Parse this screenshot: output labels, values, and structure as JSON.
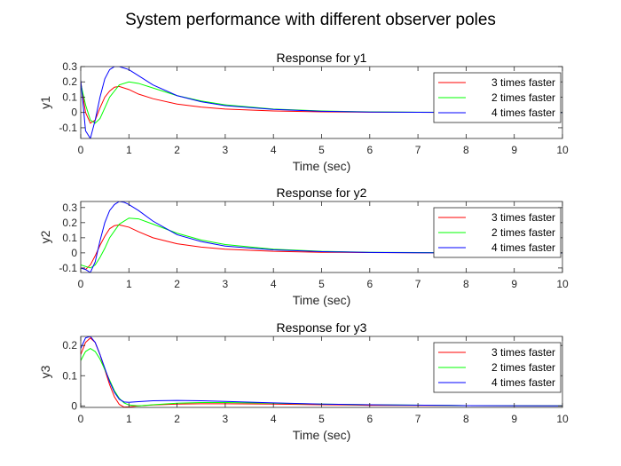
{
  "figure_title": "System performance with different observer poles",
  "chart_data": [
    {
      "type": "line",
      "title": "Response for y1",
      "xlabel": "Time (sec)",
      "ylabel": "y1",
      "xlim": [
        0,
        10
      ],
      "ylim": [
        -0.17,
        0.3
      ],
      "xticks": [
        0,
        1,
        2,
        3,
        4,
        5,
        6,
        7,
        8,
        9,
        10
      ],
      "yticks": [
        -0.1,
        0,
        0.1,
        0.2,
        0.3
      ],
      "ytick_labels": [
        "-0.1",
        "0",
        "0.1",
        "0.2",
        "0.3"
      ],
      "legend_position": "top-right",
      "series": [
        {
          "name": "3 times faster",
          "color": "#ff0000",
          "x": [
            0,
            0.1,
            0.2,
            0.3,
            0.4,
            0.5,
            0.6,
            0.7,
            0.8,
            1.0,
            1.2,
            1.5,
            2,
            2.5,
            3,
            4,
            5,
            6,
            7,
            8,
            10
          ],
          "y": [
            0.2,
            0.0,
            -0.07,
            -0.05,
            0.03,
            0.1,
            0.14,
            0.165,
            0.17,
            0.15,
            0.12,
            0.09,
            0.055,
            0.035,
            0.022,
            0.01,
            0.004,
            0.002,
            0.001,
            0,
            0
          ]
        },
        {
          "name": "2 times faster",
          "color": "#00ff00",
          "x": [
            0,
            0.1,
            0.2,
            0.3,
            0.4,
            0.5,
            0.6,
            0.8,
            1.0,
            1.2,
            1.5,
            2,
            2.5,
            3,
            4,
            5,
            6,
            7,
            8,
            10
          ],
          "y": [
            0.19,
            0.05,
            -0.05,
            -0.07,
            -0.04,
            0.03,
            0.1,
            0.18,
            0.2,
            0.19,
            0.16,
            0.11,
            0.075,
            0.05,
            0.022,
            0.01,
            0.004,
            0.002,
            0.001,
            0
          ]
        },
        {
          "name": "4 times faster",
          "color": "#0000ff",
          "x": [
            0,
            0.05,
            0.1,
            0.2,
            0.3,
            0.4,
            0.5,
            0.6,
            0.7,
            0.8,
            1.0,
            1.2,
            1.5,
            2,
            2.5,
            3,
            4,
            5,
            6,
            7,
            8,
            10
          ],
          "y": [
            0.21,
            0.05,
            -0.12,
            -0.17,
            -0.05,
            0.1,
            0.22,
            0.28,
            0.3,
            0.3,
            0.28,
            0.24,
            0.18,
            0.11,
            0.07,
            0.045,
            0.02,
            0.008,
            0.003,
            0.001,
            0,
            0
          ]
        }
      ]
    },
    {
      "type": "line",
      "title": "Response for y2",
      "xlabel": "Time (sec)",
      "ylabel": "y2",
      "xlim": [
        0,
        10
      ],
      "ylim": [
        -0.13,
        0.34
      ],
      "xticks": [
        0,
        1,
        2,
        3,
        4,
        5,
        6,
        7,
        8,
        9,
        10
      ],
      "yticks": [
        -0.1,
        0,
        0.1,
        0.2,
        0.3
      ],
      "ytick_labels": [
        "-0.1",
        "0",
        "0.1",
        "0.2",
        "0.3"
      ],
      "legend_position": "top-right",
      "series": [
        {
          "name": "3 times faster",
          "color": "#ff0000",
          "x": [
            0,
            0.1,
            0.2,
            0.3,
            0.4,
            0.5,
            0.6,
            0.7,
            0.8,
            1.0,
            1.2,
            1.5,
            2,
            2.5,
            3,
            4,
            5,
            6,
            7,
            8,
            10
          ],
          "y": [
            -0.1,
            -0.11,
            -0.08,
            -0.02,
            0.05,
            0.11,
            0.16,
            0.18,
            0.185,
            0.17,
            0.14,
            0.1,
            0.06,
            0.038,
            0.024,
            0.01,
            0.004,
            0.002,
            0.001,
            0,
            0
          ]
        },
        {
          "name": "2 times faster",
          "color": "#00ff00",
          "x": [
            0,
            0.1,
            0.2,
            0.3,
            0.4,
            0.5,
            0.6,
            0.8,
            1.0,
            1.2,
            1.5,
            2,
            2.5,
            3,
            4,
            5,
            6,
            7,
            8,
            10
          ],
          "y": [
            -0.08,
            -0.09,
            -0.1,
            -0.08,
            -0.03,
            0.03,
            0.1,
            0.19,
            0.23,
            0.225,
            0.19,
            0.13,
            0.085,
            0.055,
            0.024,
            0.01,
            0.004,
            0.002,
            0.001,
            0
          ]
        },
        {
          "name": "4 times faster",
          "color": "#0000ff",
          "x": [
            0,
            0.05,
            0.1,
            0.2,
            0.3,
            0.4,
            0.5,
            0.6,
            0.7,
            0.8,
            0.9,
            1.0,
            1.2,
            1.5,
            2,
            2.5,
            3,
            4,
            5,
            6,
            7,
            8,
            10
          ],
          "y": [
            -0.1,
            -0.105,
            -0.11,
            -0.13,
            -0.06,
            0.08,
            0.2,
            0.28,
            0.32,
            0.34,
            0.335,
            0.32,
            0.28,
            0.21,
            0.12,
            0.075,
            0.045,
            0.02,
            0.008,
            0.003,
            0.001,
            0,
            0
          ]
        }
      ]
    },
    {
      "type": "line",
      "title": "Response for y3",
      "xlabel": "Time (sec)",
      "ylabel": "y3",
      "xlim": [
        0,
        10
      ],
      "ylim": [
        -0.005,
        0.23
      ],
      "xticks": [
        0,
        1,
        2,
        3,
        4,
        5,
        6,
        7,
        8,
        9,
        10
      ],
      "yticks": [
        0,
        0.1,
        0.2
      ],
      "ytick_labels": [
        "0",
        "0.1",
        "0.2"
      ],
      "legend_position": "top-right",
      "series": [
        {
          "name": "3 times faster",
          "color": "#ff0000",
          "x": [
            0,
            0.1,
            0.2,
            0.3,
            0.4,
            0.5,
            0.6,
            0.7,
            0.8,
            0.9,
            1.0,
            1.2,
            1.5,
            2,
            2.5,
            3,
            4,
            5,
            6,
            8,
            10
          ],
          "y": [
            0.17,
            0.21,
            0.225,
            0.21,
            0.17,
            0.12,
            0.07,
            0.03,
            0.005,
            -0.004,
            -0.003,
            0.0,
            0.003,
            0.006,
            0.007,
            0.007,
            0.006,
            0.004,
            0.002,
            0.001,
            0
          ]
        },
        {
          "name": "2 times faster",
          "color": "#00ff00",
          "x": [
            0,
            0.1,
            0.2,
            0.3,
            0.4,
            0.5,
            0.6,
            0.7,
            0.8,
            0.9,
            1.0,
            1.2,
            1.5,
            2,
            2.5,
            3,
            4,
            5,
            6,
            8,
            10
          ],
          "y": [
            0.15,
            0.18,
            0.19,
            0.18,
            0.155,
            0.12,
            0.085,
            0.05,
            0.025,
            0.01,
            0.003,
            0.0,
            0.004,
            0.009,
            0.011,
            0.011,
            0.009,
            0.006,
            0.004,
            0.001,
            0
          ]
        },
        {
          "name": "4 times faster",
          "color": "#0000ff",
          "x": [
            0,
            0.1,
            0.2,
            0.3,
            0.4,
            0.5,
            0.6,
            0.7,
            0.8,
            0.9,
            1.0,
            1.2,
            1.5,
            2,
            2.5,
            3,
            4,
            5,
            6,
            8,
            10
          ],
          "y": [
            0.19,
            0.225,
            0.23,
            0.21,
            0.17,
            0.125,
            0.08,
            0.045,
            0.022,
            0.013,
            0.012,
            0.014,
            0.017,
            0.018,
            0.017,
            0.015,
            0.01,
            0.006,
            0.004,
            0.001,
            0
          ]
        }
      ]
    }
  ]
}
